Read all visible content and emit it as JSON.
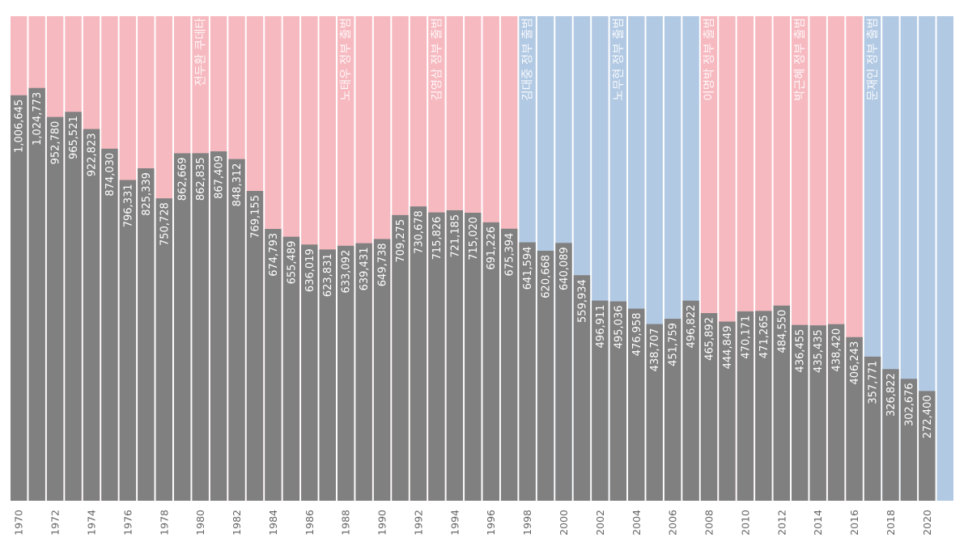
{
  "chart_data": {
    "type": "bar",
    "title": "",
    "xlabel": "",
    "ylabel": "",
    "ylim": [
      0,
      1203000
    ],
    "grid": false,
    "x": [
      1970,
      1971,
      1972,
      1973,
      1974,
      1975,
      1976,
      1977,
      1978,
      1979,
      1980,
      1981,
      1982,
      1983,
      1984,
      1985,
      1986,
      1987,
      1988,
      1989,
      1990,
      1991,
      1992,
      1993,
      1994,
      1995,
      1996,
      1997,
      1998,
      1999,
      2000,
      2001,
      2002,
      2003,
      2004,
      2005,
      2006,
      2007,
      2008,
      2009,
      2010,
      2011,
      2012,
      2013,
      2014,
      2015,
      2016,
      2017,
      2018,
      2019,
      2020,
      2021
    ],
    "values": [
      1006645,
      1024773,
      952780,
      965521,
      922823,
      874030,
      796331,
      825339,
      750728,
      862669,
      862835,
      867409,
      848312,
      769155,
      674793,
      655489,
      636019,
      623831,
      633092,
      639431,
      649738,
      709275,
      730678,
      715826,
      721185,
      715020,
      691226,
      675394,
      641594,
      620668,
      640089,
      559934,
      496911,
      495036,
      476958,
      438707,
      451759,
      496822,
      465892,
      444849,
      470171,
      471265,
      484550,
      436455,
      435435,
      438420,
      406243,
      357771,
      326822,
      302676,
      272400,
      null
    ],
    "labels": [
      "1,006,645",
      "1,024,773",
      "952,780",
      "965,521",
      "922,823",
      "874,030",
      "796,331",
      "825,339",
      "750,728",
      "862,669",
      "862,835",
      "867,409",
      "848,312",
      "769,155",
      "674,793",
      "655,489",
      "636,019",
      "623,831",
      "633,092",
      "639,431",
      "649,738",
      "709,275",
      "730,678",
      "715,826",
      "721,185",
      "715,020",
      "691,226",
      "675,394",
      "641,594",
      "620,668",
      "640,089",
      "559,934",
      "496,911",
      "495,036",
      "476,958",
      "438,707",
      "451,759",
      "496,822",
      "465,892",
      "444,849",
      "470,171",
      "471,265",
      "484,550",
      "436,455",
      "435,435",
      "438,420",
      "406,243",
      "357,771",
      "326,822",
      "302,676",
      "272,400",
      ""
    ],
    "x_tick_labels": [
      "1970",
      "1972",
      "1974",
      "1976",
      "1978",
      "1980",
      "1982",
      "1984",
      "1986",
      "1988",
      "1990",
      "1992",
      "1994",
      "1996",
      "1998",
      "2000",
      "2002",
      "2004",
      "2006",
      "2008",
      "2010",
      "2012",
      "2014",
      "2016",
      "2018",
      "2020"
    ],
    "periods": [
      {
        "start": 1970,
        "end": 1997,
        "party": "conservative"
      },
      {
        "start": 1998,
        "end": 2007,
        "party": "liberal"
      },
      {
        "start": 2008,
        "end": 2016,
        "party": "conservative"
      },
      {
        "start": 2017,
        "end": 2021,
        "party": "liberal"
      }
    ],
    "annotations": [
      {
        "year": 1980,
        "text": "전두환 쿠데타"
      },
      {
        "year": 1988,
        "text": "노태우 정부 출범"
      },
      {
        "year": 1993,
        "text": "김영삼 정부 출범"
      },
      {
        "year": 1998,
        "text": "김대중 정부 출범"
      },
      {
        "year": 2003,
        "text": "노무현 정부 출범"
      },
      {
        "year": 2008,
        "text": "이명박 정부 출범"
      },
      {
        "year": 2013,
        "text": "박근혜 정부 출범"
      },
      {
        "year": 2017,
        "text": "문재인 정부 출범"
      }
    ],
    "colors": {
      "conservative": "#f6b9c0",
      "liberal": "#b2c9e3",
      "bar": "#808080",
      "label": "#ffffff",
      "axis_text": "#666666"
    }
  }
}
